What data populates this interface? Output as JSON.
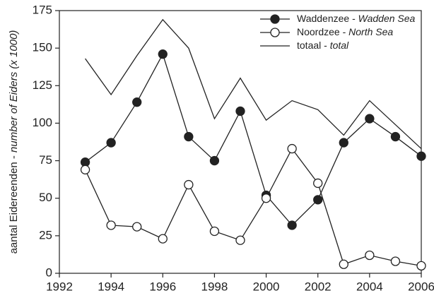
{
  "chart_data": {
    "type": "line",
    "y_label": "aantal Eidereenden - number of Eiders (x 1000)",
    "x": [
      1993,
      1994,
      1995,
      1996,
      1997,
      1998,
      1999,
      2000,
      2001,
      2002,
      2003,
      2004,
      2005,
      2006
    ],
    "series": [
      {
        "name": "Waddenzee - Wadden Sea",
        "color": "#222222",
        "marker": "filled",
        "values": [
          74,
          87,
          114,
          146,
          91,
          75,
          108,
          52,
          32,
          49,
          87,
          103,
          91,
          78
        ]
      },
      {
        "name": "Noordzee - North Sea",
        "color": "#222222",
        "marker": "open",
        "values": [
          69,
          32,
          31,
          23,
          59,
          28,
          22,
          50,
          83,
          60,
          6,
          12,
          8,
          5
        ]
      },
      {
        "name": "totaal - total",
        "color": "#222222",
        "values": [
          143,
          119,
          145,
          169,
          150,
          103,
          130,
          102,
          115,
          109,
          92,
          115,
          99,
          83
        ]
      }
    ],
    "xlim": [
      1992,
      2006
    ],
    "xticks": [
      1992,
      1994,
      1996,
      1998,
      2000,
      2002,
      2004,
      2006
    ],
    "ylim": [
      0,
      175
    ],
    "yticks": [
      0,
      25,
      50,
      75,
      100,
      125,
      150,
      175
    ],
    "legend": "top-right"
  }
}
